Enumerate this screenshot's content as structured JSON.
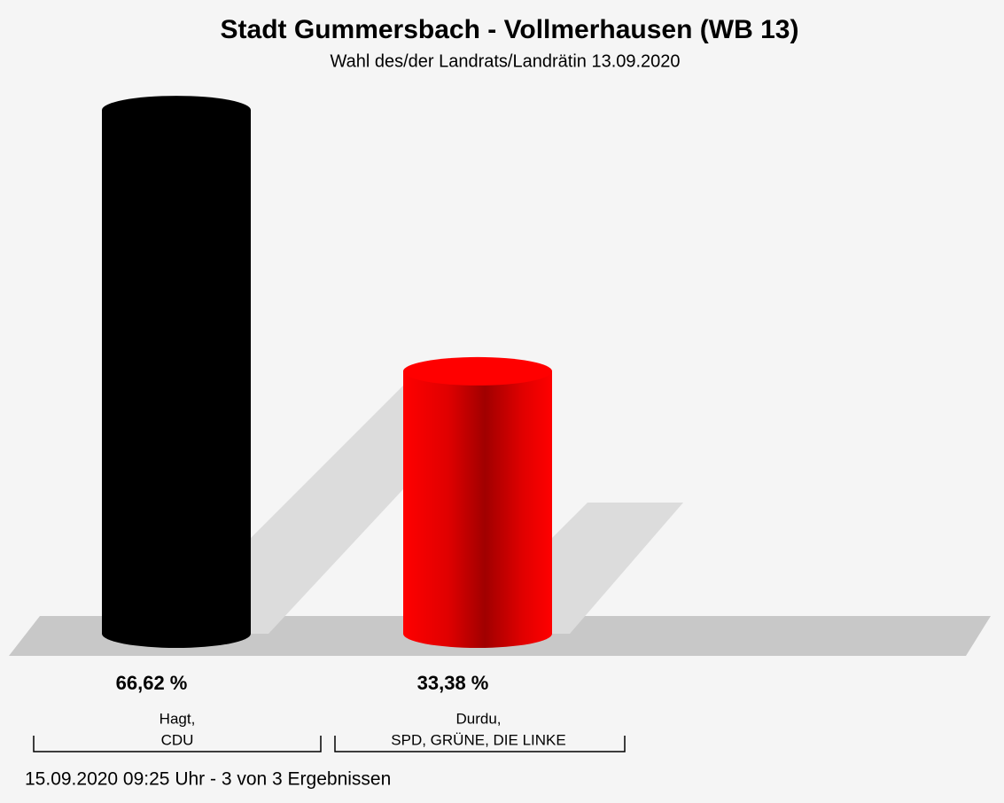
{
  "chart_data": {
    "type": "bar",
    "title": "Stadt Gummersbach - Vollmerhausen (WB 13)",
    "subtitle": "Wahl des/der Landrats/Landrätin 13.09.2020",
    "categories": [
      [
        "Hagt,",
        "CDU"
      ],
      [
        "Durdu,",
        "SPD, GRÜNE, DIE LINKE"
      ]
    ],
    "values": [
      66.62,
      33.38
    ],
    "value_labels": [
      "66,62 %",
      "33,38 %"
    ],
    "colors": [
      "#000000",
      "#ff0000"
    ],
    "footer": "15.09.2020 09:25 Uhr - 3 von 3 Ergebnissen"
  }
}
